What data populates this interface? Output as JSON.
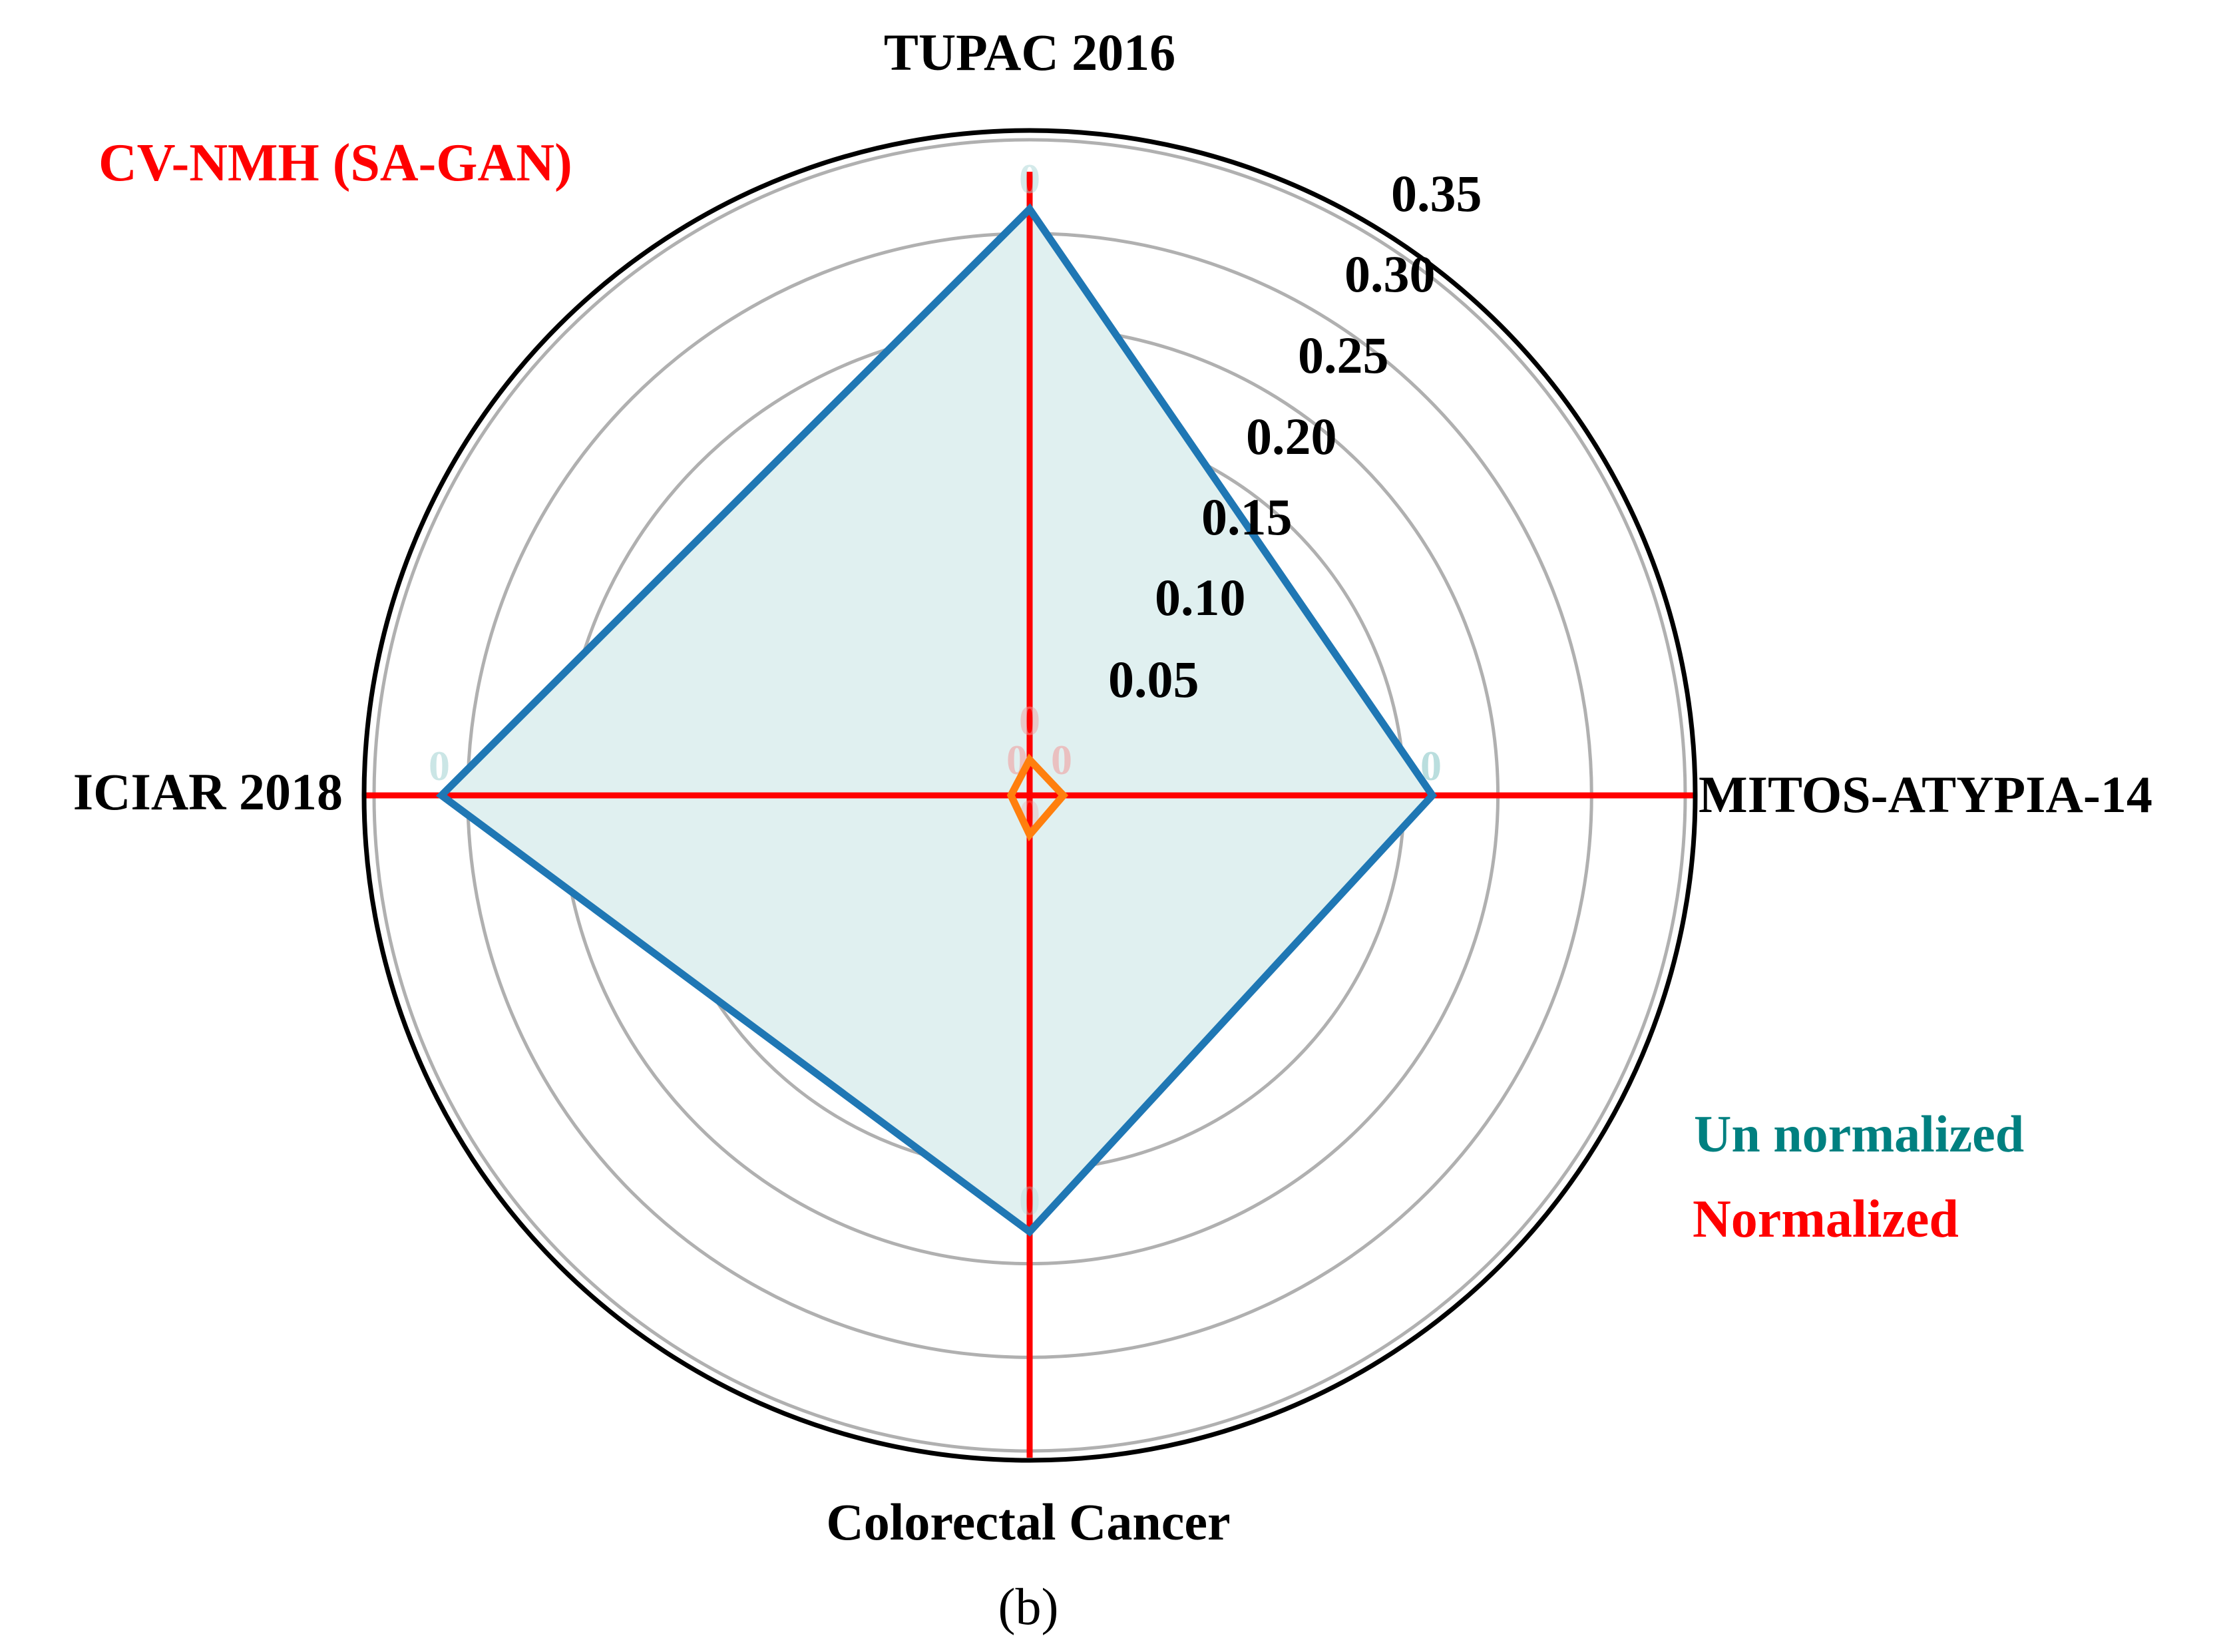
{
  "chart_data": {
    "type": "radar",
    "title": "",
    "series_label": "CV-NMH (SA-GAN)",
    "caption": "(b)",
    "axes": [
      "TUPAC 2016",
      "MITOS-ATYPIA-14",
      "Colorectal Cancer",
      "ICIAR 2018"
    ],
    "radial_ticks": [
      "0.05",
      "0.10",
      "0.15",
      "0.20",
      "0.25",
      "0.30",
      "0.35"
    ],
    "radial_tick_values": [
      0.05,
      0.1,
      0.15,
      0.2,
      0.25,
      0.3,
      0.35
    ],
    "rlim": [
      0,
      0.35
    ],
    "grid": true,
    "series": [
      {
        "name": "Un normalized",
        "values": [
          0.313,
          0.215,
          0.233,
          0.314
        ],
        "point_labels": [
          "0",
          "0",
          "0",
          "0"
        ],
        "line_color": "#1f77b4",
        "fill_color": "#e0f0f0",
        "label_color": "#008080"
      },
      {
        "name": "Normalized",
        "values": [
          0.019,
          0.018,
          0.021,
          0.01
        ],
        "point_labels": [
          "0",
          "0",
          "0",
          "0"
        ],
        "line_color": "#ff7f0e",
        "label_color": "#ff0000"
      }
    ],
    "legend": [
      {
        "label": "Un normalized",
        "color": "#008080"
      },
      {
        "label": "Normalized",
        "color": "#ff0000"
      }
    ],
    "legend_position": "lower right"
  },
  "colors": {
    "axis_spokes": "#ff0000",
    "grid_rings": "#b0b0b0",
    "outer_circle": "#000000",
    "series_label": "#ff0000"
  }
}
